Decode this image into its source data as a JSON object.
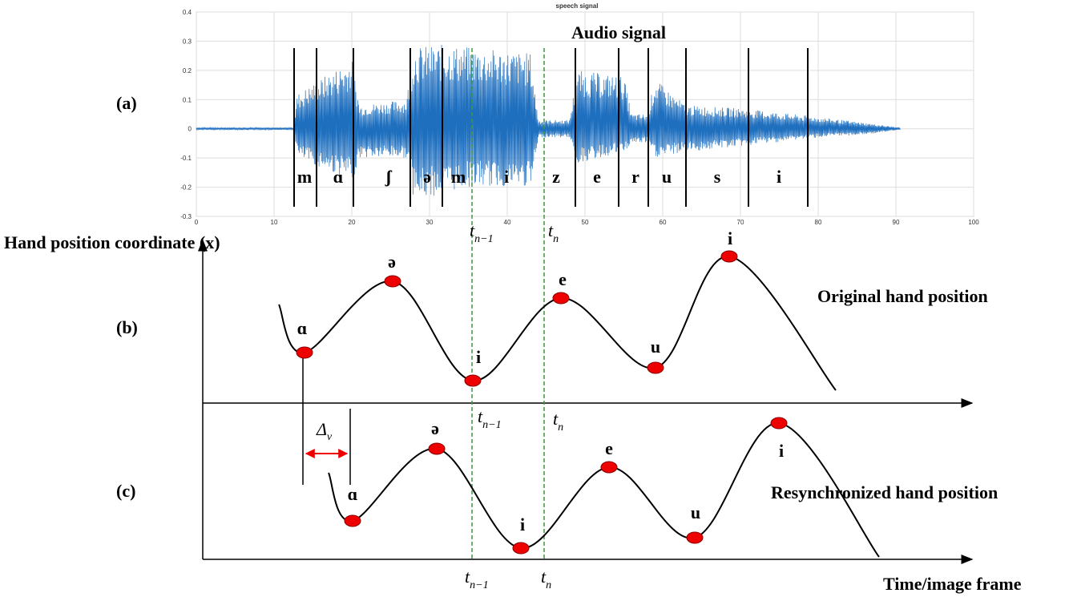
{
  "panel_labels": [
    "(a)",
    "(b)",
    "(c)"
  ],
  "audio_plot": {
    "title": "speech signal",
    "caption": "Audio signal",
    "yticks": [
      "0.4",
      "0.3",
      "0.2",
      "0.1",
      "0",
      "-0.1",
      "-0.2",
      "-0.3"
    ],
    "xticks": [
      "0",
      "10",
      "20",
      "30",
      "40",
      "50",
      "60",
      "70",
      "80",
      "90",
      "100"
    ],
    "phonemes": [
      "m",
      "ɑ",
      "ʃ",
      "ə",
      "m",
      "i",
      "z",
      "e",
      "r",
      "u",
      "s",
      "i"
    ],
    "time_labels": [
      {
        "base": "t",
        "sub": "n−1"
      },
      {
        "base": "t",
        "sub": "n"
      }
    ]
  },
  "hand_axis_label": "Hand position coordinate (x)",
  "original": {
    "caption": "Original hand position",
    "targets": [
      "ɑ",
      "ə",
      "i",
      "e",
      "u",
      "i"
    ],
    "time_labels": [
      {
        "base": "t",
        "sub": "n−1"
      },
      {
        "base": "t",
        "sub": "n"
      }
    ]
  },
  "resynchronized": {
    "caption": "Resynchronized hand position",
    "targets": [
      "ɑ",
      "ə",
      "i",
      "e",
      "u",
      "i"
    ],
    "time_labels": [
      {
        "base": "t",
        "sub": "n−1"
      },
      {
        "base": "t",
        "sub": "n"
      }
    ],
    "delay": {
      "base": "Δ",
      "sub": "v"
    }
  },
  "x_axis_label": "Time/image frame"
}
